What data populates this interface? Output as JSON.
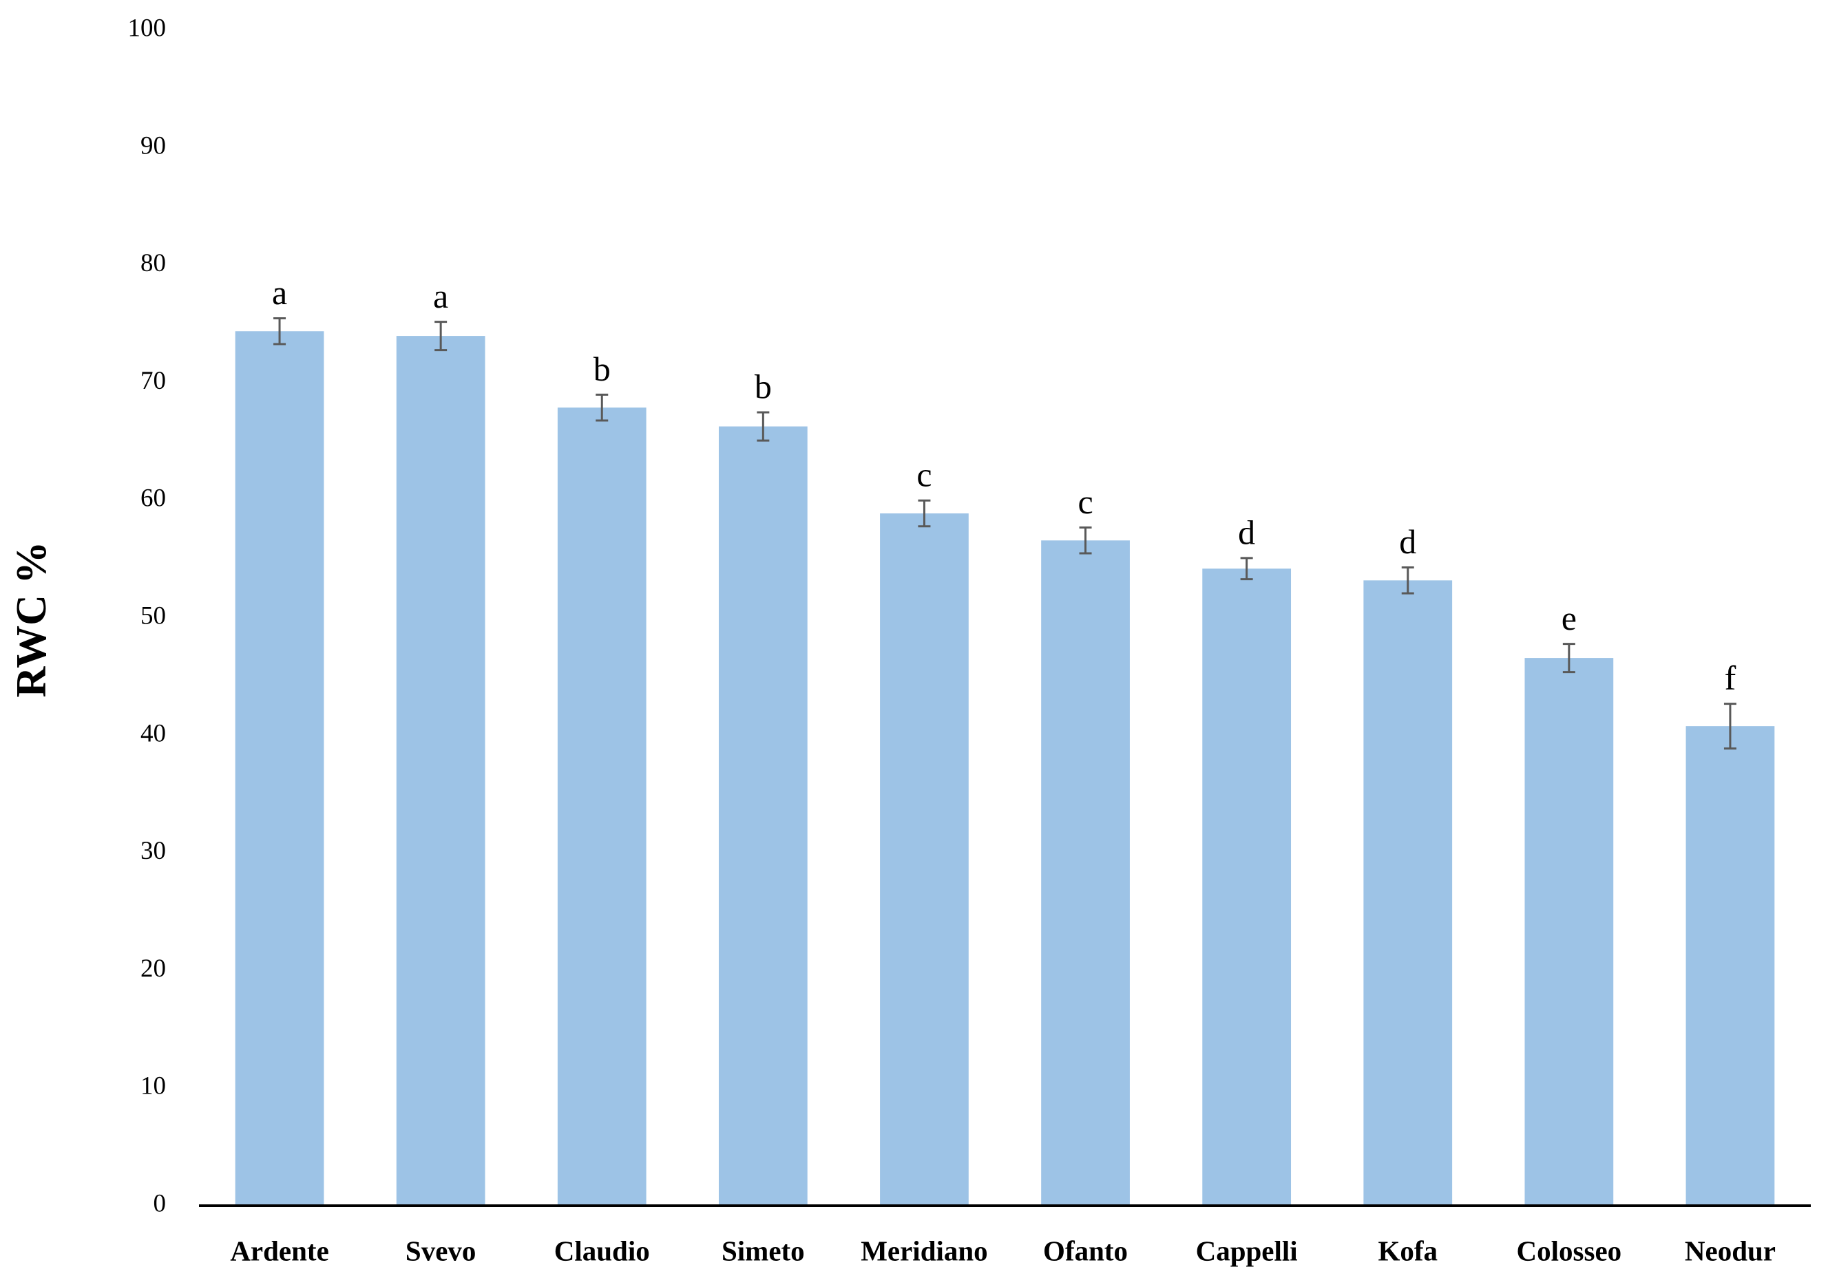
{
  "chart_data": {
    "type": "bar",
    "y_label": "RWC %",
    "categories": [
      "Ardente",
      "Svevo",
      "Claudio",
      "Simeto",
      "Meridiano",
      "Ofanto",
      "Cappelli",
      "Kofa",
      "Colosseo",
      "Neodur"
    ],
    "values": [
      74.4,
      74.0,
      67.9,
      66.3,
      58.9,
      56.6,
      54.2,
      53.2,
      46.6,
      40.8
    ],
    "errors": [
      1.1,
      1.2,
      1.1,
      1.2,
      1.1,
      1.1,
      0.9,
      1.1,
      1.2,
      1.9
    ],
    "annotations": [
      "a",
      "a",
      "b",
      "b",
      "c",
      "c",
      "d",
      "d",
      "e",
      "f"
    ],
    "color": "#9dc3e6",
    "error_color": "#595959",
    "ylim": [
      0,
      100
    ],
    "yticks": [
      0,
      10,
      20,
      30,
      40,
      50,
      60,
      70,
      80,
      90,
      100
    ],
    "grid": false
  }
}
